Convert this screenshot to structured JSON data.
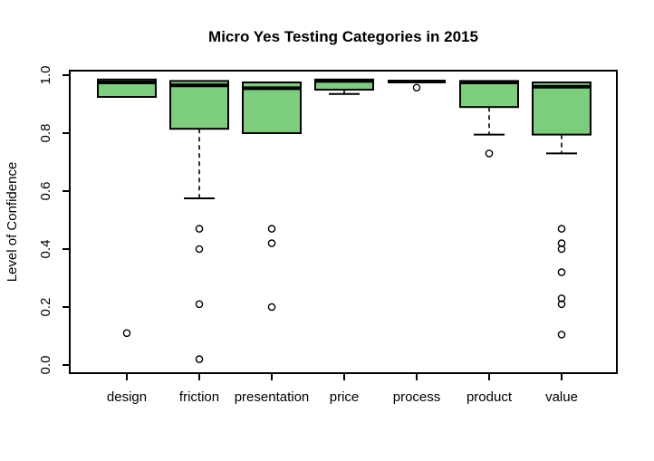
{
  "chart_data": {
    "type": "boxplot",
    "title": "Micro Yes Testing Categories in 2015",
    "ylabel": "Level of Confidence",
    "xlabel": "",
    "ylim": [
      0,
      1
    ],
    "grid": false,
    "legend": "none",
    "yticks": [
      "0.0",
      "0.2",
      "0.4",
      "0.6",
      "0.8",
      "1.0"
    ],
    "ytick_values": [
      0,
      0.2,
      0.4,
      0.6,
      0.8,
      1.0
    ],
    "categories": [
      "design",
      "friction",
      "presentation",
      "price",
      "process",
      "product",
      "value"
    ],
    "box_fill": "#7ccd7c",
    "box_stroke": "#000000",
    "series": [
      {
        "name": "design",
        "low": 0.925,
        "q1": 0.925,
        "median": 0.975,
        "q3": 0.985,
        "high": 0.985,
        "outliers": [
          0.11
        ]
      },
      {
        "name": "friction",
        "low": 0.575,
        "q1": 0.815,
        "median": 0.965,
        "q3": 0.98,
        "high": 0.98,
        "outliers": [
          0.47,
          0.4,
          0.21,
          0.02
        ]
      },
      {
        "name": "presentation",
        "low": 0.8,
        "q1": 0.8,
        "median": 0.955,
        "q3": 0.975,
        "high": 0.975,
        "outliers": [
          0.47,
          0.42,
          0.2
        ]
      },
      {
        "name": "price",
        "low": 0.935,
        "q1": 0.95,
        "median": 0.98,
        "q3": 0.985,
        "high": 0.985,
        "outliers": []
      },
      {
        "name": "process",
        "low": 0.978,
        "q1": 0.978,
        "median": 0.978,
        "q3": 0.978,
        "high": 0.978,
        "outliers": [
          0.957
        ]
      },
      {
        "name": "product",
        "low": 0.795,
        "q1": 0.89,
        "median": 0.975,
        "q3": 0.98,
        "high": 0.98,
        "outliers": [
          0.73
        ]
      },
      {
        "name": "value",
        "low": 0.73,
        "q1": 0.795,
        "median": 0.96,
        "q3": 0.975,
        "high": 0.975,
        "outliers": [
          0.47,
          0.42,
          0.4,
          0.32,
          0.23,
          0.21,
          0.105
        ]
      }
    ]
  }
}
